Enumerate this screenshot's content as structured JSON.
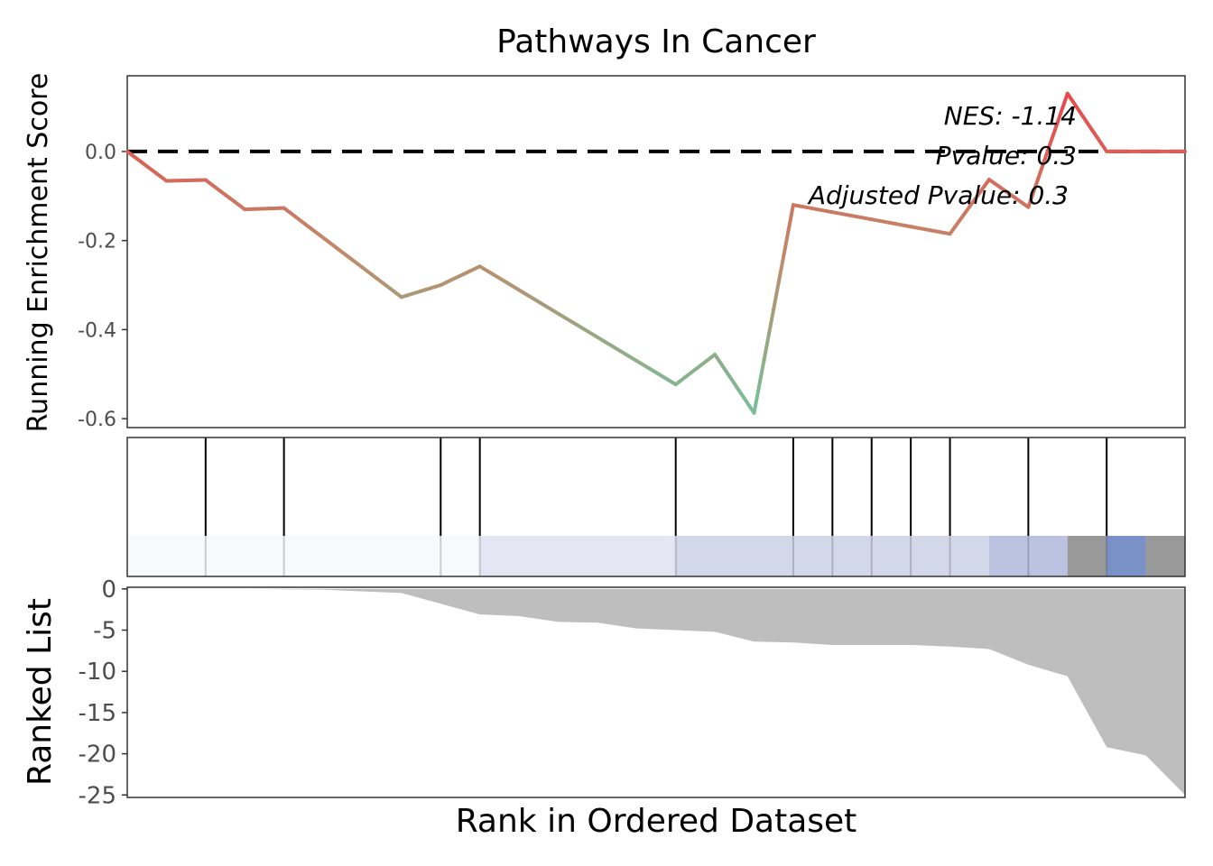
{
  "chart_data": {
    "type": "line",
    "title": "Pathways In Cancer",
    "ylabel": "Running Enrichment Score",
    "xlabel": "Rank in Ordered Dataset",
    "ylim": [
      -0.62,
      0.17
    ],
    "yticks": [
      0.0,
      -0.2,
      -0.4,
      -0.6
    ],
    "ytick_labels": [
      "0.0",
      "-0.2",
      "-0.4",
      "-0.6"
    ],
    "x_range": [
      0,
      27
    ],
    "baseline": 0,
    "grid": false,
    "annotations": [
      "NES: -1.14",
      "Pvalue: 0.3",
      "Adjusted Pvalue: 0.3"
    ],
    "colors": {
      "low": "#76c09a",
      "mid": "#c08a6a",
      "high": "#e8484a"
    },
    "running_es": {
      "x": [
        0,
        1,
        2,
        3,
        4,
        7,
        8,
        9,
        14,
        15,
        16,
        17,
        21,
        22,
        23,
        24,
        25,
        26,
        27
      ],
      "y": [
        0.0,
        -0.066,
        -0.064,
        -0.13,
        -0.127,
        -0.327,
        -0.3,
        -0.258,
        -0.523,
        -0.456,
        -0.587,
        -0.12,
        -0.185,
        -0.063,
        -0.125,
        0.13,
        0.0,
        0.0,
        0.0
      ]
    },
    "hits": [
      2,
      4,
      8,
      9,
      14,
      17,
      18,
      19,
      20,
      21,
      23,
      25
    ],
    "heatmap_segments": [
      {
        "from": 0,
        "to": 9,
        "color": "#f8f9fd"
      },
      {
        "from": 9,
        "to": 14,
        "color": "#e4e6f3"
      },
      {
        "from": 14,
        "to": 22,
        "color": "#d3d7ea"
      },
      {
        "from": 22,
        "to": 24,
        "color": "#bcc3e0"
      },
      {
        "from": 24,
        "to": 25,
        "color": "#999999"
      },
      {
        "from": 25,
        "to": 26,
        "color": "#7a91c7"
      },
      {
        "from": 26,
        "to": 27,
        "color": "#999999"
      }
    ],
    "ranked_list": {
      "ylabel": "Ranked List",
      "ylim": [
        -25.3,
        0.2
      ],
      "yticks": [
        0,
        -5,
        -10,
        -15,
        -20,
        -25
      ],
      "ytick_labels": [
        "0",
        "-5",
        "-10",
        "-15",
        "-20",
        "-25"
      ],
      "fill_color": "#bebebe",
      "x": [
        0,
        3,
        5,
        7,
        8,
        9,
        10,
        11,
        12,
        13,
        14,
        15,
        16,
        17,
        18,
        19,
        20,
        21,
        22,
        23,
        24,
        25,
        26,
        27
      ],
      "y": [
        0,
        0,
        -0.1,
        -0.5,
        -1.8,
        -3.1,
        -3.3,
        -4.0,
        -4.1,
        -4.8,
        -5.0,
        -5.2,
        -6.4,
        -6.5,
        -6.8,
        -6.8,
        -6.8,
        -7.0,
        -7.3,
        -9.2,
        -10.6,
        -19.2,
        -20.2,
        -25.0
      ]
    }
  }
}
